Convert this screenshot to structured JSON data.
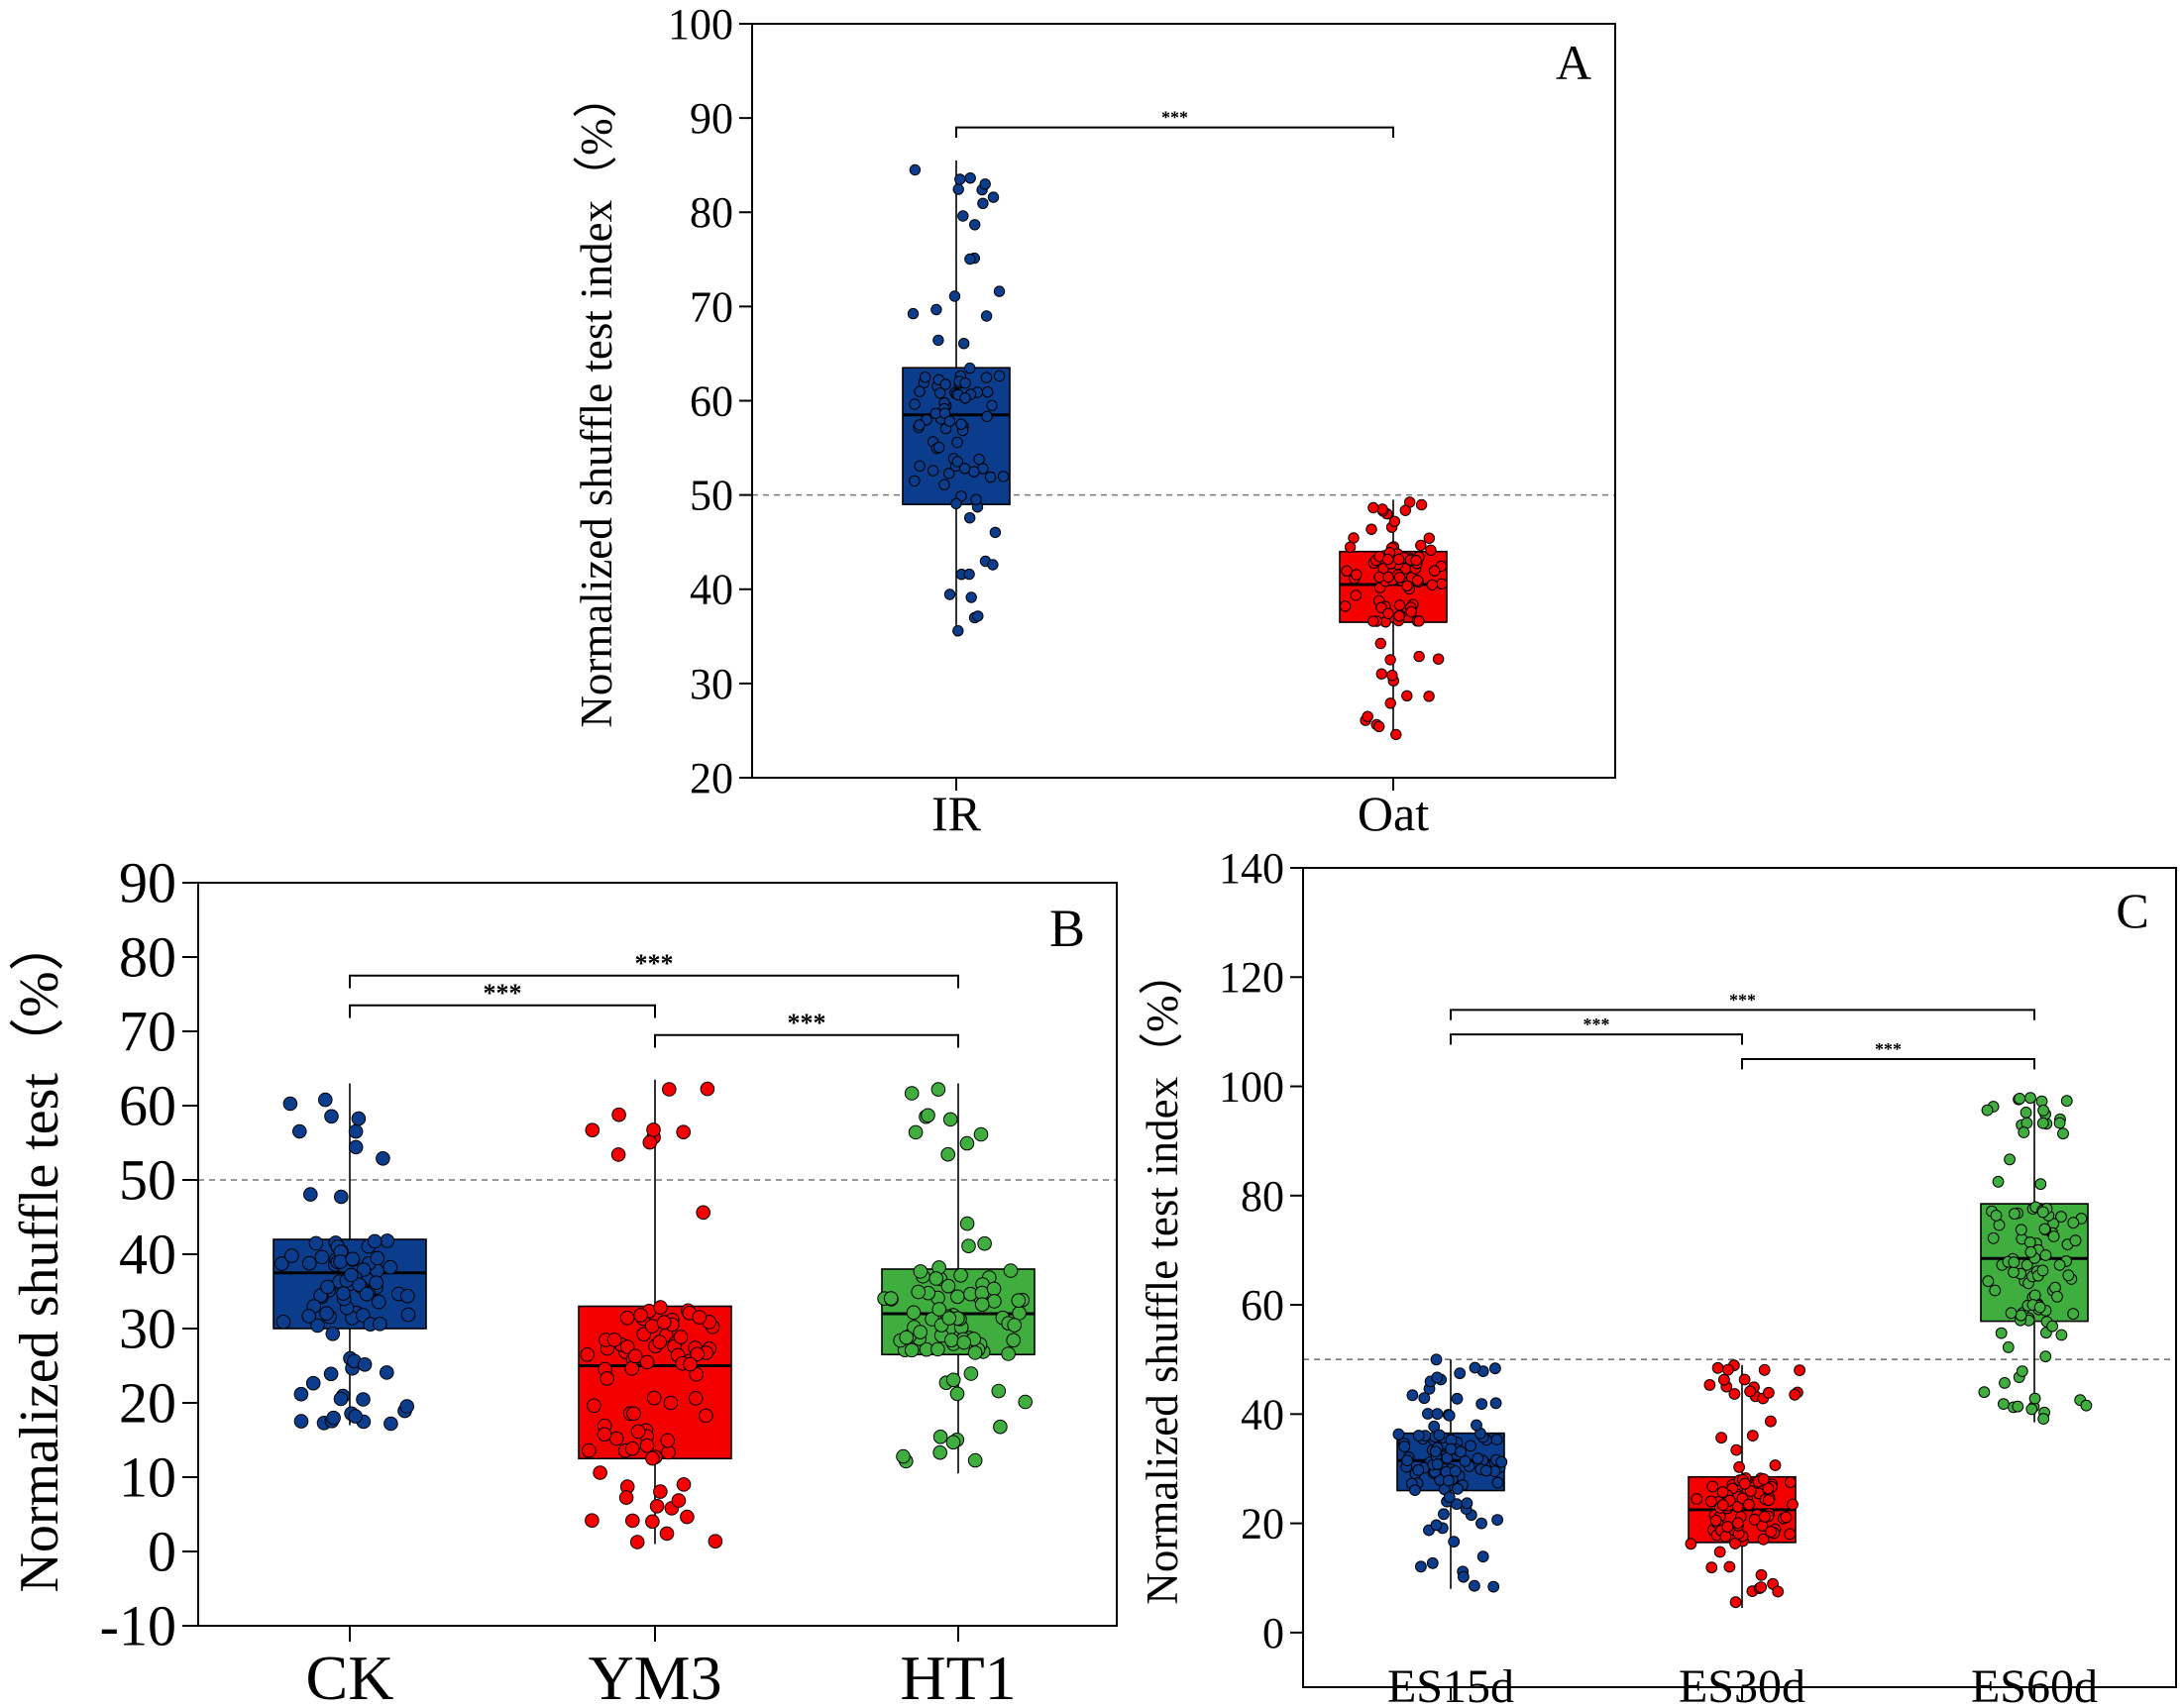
{
  "chart_data": [
    {
      "panel": "A",
      "type": "box",
      "ylabel": "Normalized shuffle test index（%）",
      "ylim": [
        20,
        100
      ],
      "yticks": [
        20,
        30,
        40,
        50,
        60,
        70,
        80,
        90,
        100
      ],
      "reference_line": 50,
      "categories": [
        "IR",
        "Oat"
      ],
      "colors": [
        "#0b3d8c",
        "#f50000"
      ],
      "series": [
        {
          "name": "IR",
          "whisker_low": 35,
          "q1": 49,
          "median": 58.5,
          "q3": 63.5,
          "whisker_high": 85.5,
          "n_points": 90
        },
        {
          "name": "Oat",
          "whisker_low": 24.5,
          "q1": 36.5,
          "median": 40.5,
          "q3": 44,
          "whisker_high": 49.5,
          "n_points": 90
        }
      ],
      "significance": [
        {
          "from": "IR",
          "to": "Oat",
          "label": "***",
          "y": 89
        }
      ]
    },
    {
      "panel": "B",
      "type": "box",
      "ylabel": "Normalized shuffle test（%）",
      "ylim": [
        -10,
        90
      ],
      "yticks": [
        -10,
        0,
        10,
        20,
        30,
        40,
        50,
        60,
        70,
        80,
        90
      ],
      "reference_line": 50,
      "categories": [
        "CK",
        "YM3",
        "HT1"
      ],
      "colors": [
        "#0b3d8c",
        "#f50000",
        "#3fae3f"
      ],
      "series": [
        {
          "name": "CK",
          "whisker_low": 17,
          "q1": 30,
          "median": 37.5,
          "q3": 42,
          "whisker_high": 63,
          "n_points": 90
        },
        {
          "name": "YM3",
          "whisker_low": 1,
          "q1": 12.5,
          "median": 25,
          "q3": 33,
          "whisker_high": 63.5,
          "n_points": 90
        },
        {
          "name": "HT1",
          "whisker_low": 10.5,
          "q1": 26.5,
          "median": 32,
          "q3": 38,
          "whisker_high": 63,
          "n_points": 90
        }
      ],
      "significance": [
        {
          "from": "CK",
          "to": "HT1",
          "label": "***",
          "y": 77.5
        },
        {
          "from": "CK",
          "to": "YM3",
          "label": "***",
          "y": 73.5
        },
        {
          "from": "YM3",
          "to": "HT1",
          "label": "***",
          "y": 69.5
        }
      ]
    },
    {
      "panel": "C",
      "type": "box",
      "ylabel": "Normalized shuffle test index（%）",
      "ylim": [
        -10,
        140
      ],
      "yticks": [
        0,
        20,
        40,
        60,
        80,
        100,
        120,
        140
      ],
      "reference_line": 50,
      "categories": [
        "ES15d",
        "ES30d",
        "ES60d"
      ],
      "colors": [
        "#0b3d8c",
        "#f50000",
        "#3fae3f"
      ],
      "series": [
        {
          "name": "ES15d",
          "whisker_low": 8,
          "q1": 26,
          "median": 31.5,
          "q3": 36.5,
          "whisker_high": 50,
          "n_points": 110
        },
        {
          "name": "ES30d",
          "whisker_low": 4.5,
          "q1": 16.5,
          "median": 22.5,
          "q3": 28.5,
          "whisker_high": 49,
          "n_points": 110
        },
        {
          "name": "ES60d",
          "whisker_low": 38.5,
          "q1": 57,
          "median": 68.5,
          "q3": 78.5,
          "whisker_high": 98,
          "n_points": 110
        }
      ],
      "significance": [
        {
          "from": "ES15d",
          "to": "ES60d",
          "label": "***",
          "y": 114
        },
        {
          "from": "ES15d",
          "to": "ES30d",
          "label": "***",
          "y": 109.5
        },
        {
          "from": "ES30d",
          "to": "ES60d",
          "label": "***",
          "y": 105
        }
      ]
    }
  ]
}
